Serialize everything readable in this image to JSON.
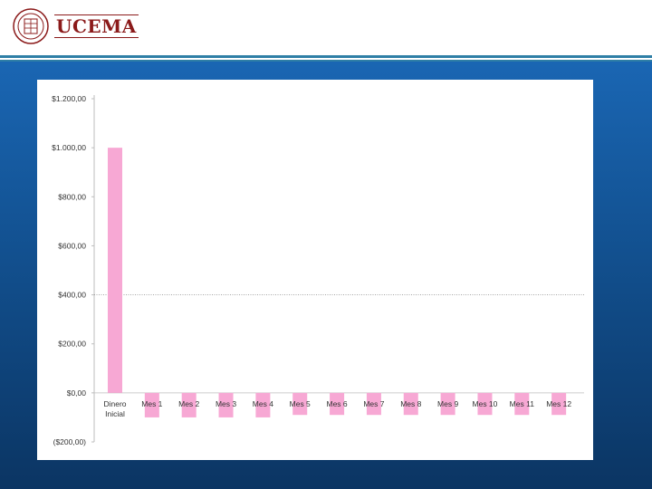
{
  "header": {
    "brand": "UCEMA",
    "seal_icon": "university-seal-icon"
  },
  "chart_data": {
    "type": "bar",
    "title": "",
    "xlabel": "",
    "ylabel": "",
    "ylim": [
      -200,
      1200
    ],
    "yticks": [
      -200,
      0,
      200,
      400,
      600,
      800,
      1000,
      1200
    ],
    "ytick_labels": [
      "($200,00)",
      "$0,00",
      "$200,00",
      "$400,00",
      "$600,00",
      "$800,00",
      "$1.000,00",
      "$1.200,00"
    ],
    "categories": [
      "Dinero Inicial",
      "Mes 1",
      "Mes 2",
      "Mes 3",
      "Mes 4",
      "Mes 5",
      "Mes 6",
      "Mes 7",
      "Mes 8",
      "Mes 9",
      "Mes 10",
      "Mes 11",
      "Mes 12"
    ],
    "values": [
      1000,
      -100,
      -100,
      -100,
      -100,
      -90,
      -90,
      -90,
      -90,
      -90,
      -90,
      -90,
      -90
    ],
    "bar_color": "#f7a8d4",
    "reference_line": 400,
    "grid": false
  }
}
